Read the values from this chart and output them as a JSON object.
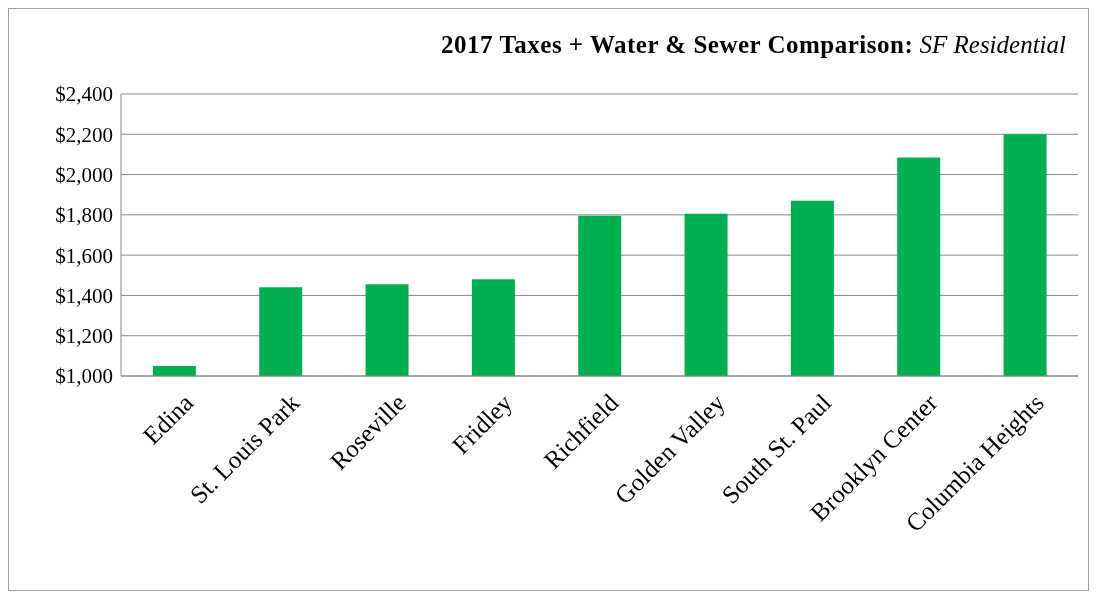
{
  "chart_data": {
    "type": "bar",
    "title": "2017 Taxes + Water & Sewer Comparison:",
    "subtitle": "SF Residential",
    "categories": [
      "Edina",
      "St. Louis Park",
      "Roseville",
      "Fridley",
      "Richfield",
      "Golden Valley",
      "South St. Paul",
      "Brooklyn Center",
      "Columbia Heights"
    ],
    "values": [
      1050,
      1440,
      1455,
      1480,
      1795,
      1805,
      1870,
      2085,
      2200
    ],
    "color": "#00b050",
    "ylim": [
      1000,
      2400
    ],
    "yticks": [
      {
        "value": 1000,
        "label": "$1,000"
      },
      {
        "value": 1200,
        "label": "$1,200"
      },
      {
        "value": 1400,
        "label": "$1,400"
      },
      {
        "value": 1600,
        "label": "$1,600"
      },
      {
        "value": 1800,
        "label": "$1,800"
      },
      {
        "value": 2000,
        "label": "$2,000"
      },
      {
        "value": 2200,
        "label": "$2,200"
      },
      {
        "value": 2400,
        "label": "$2,400"
      }
    ],
    "grid": "y",
    "legend": false
  }
}
